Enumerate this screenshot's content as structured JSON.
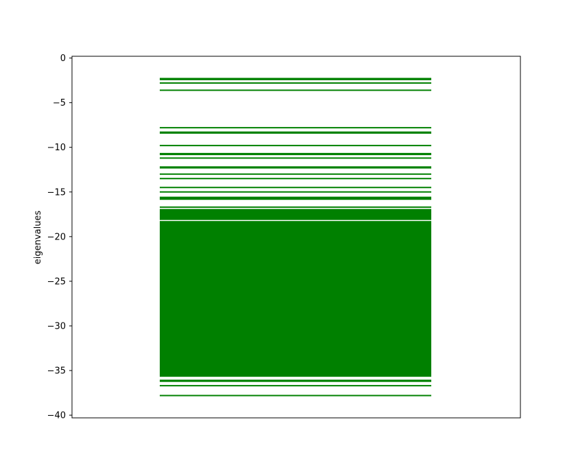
{
  "chart_data": {
    "type": "eventplot",
    "title": "",
    "xlabel": "",
    "ylabel": "eigenvalues",
    "ylim": [
      -40.3,
      0.2
    ],
    "yticks": [
      0,
      -5,
      -10,
      -15,
      -20,
      -25,
      -30,
      -35,
      -40
    ],
    "ytick_labels": [
      "0",
      "−5",
      "−10",
      "−15",
      "−20",
      "−25",
      "−30",
      "−35",
      "−40"
    ],
    "x_ticks_visible": false,
    "grid": false,
    "legend": "none",
    "line_color": "#008000",
    "eigenvalues_isolated": [
      -2.3,
      -2.4,
      -2.8,
      -3.6,
      -7.8,
      -8.3,
      -8.4,
      -9.8,
      -10.7,
      -10.8,
      -11.2,
      -12.2,
      -12.3,
      -13.0,
      -13.5,
      -14.5,
      -15.0,
      -15.6,
      -15.7,
      -15.8,
      -16.7
    ],
    "eigenvalues_dense_band": {
      "from": -16.9,
      "to": -35.7,
      "count": "many"
    },
    "eigenvalues_gap": -18.2,
    "eigenvalues_lower_tail": [
      -36.1,
      -36.2,
      -36.7,
      -37.8
    ]
  }
}
